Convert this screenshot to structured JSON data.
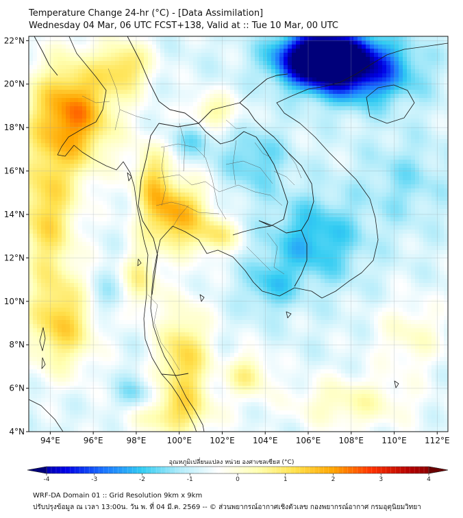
{
  "header": {
    "title_line1": "Temperature Change 24-hr (°C) - [Data Assimilation]",
    "title_line2": "Wednesday 04 Mar, 06 UTC FCST+138, Valid at :: Tue 10 Mar, 00 UTC"
  },
  "map": {
    "lon_range": [
      93,
      112.5
    ],
    "lat_range": [
      4,
      22.2
    ],
    "lat_labels": [
      "22°N",
      "20°N",
      "18°N",
      "16°N",
      "14°N",
      "12°N",
      "10°N",
      "8°N",
      "6°N",
      "4°N"
    ],
    "lat_values": [
      22,
      20,
      18,
      16,
      14,
      12,
      10,
      8,
      6,
      4
    ],
    "lon_labels": [
      "94°E",
      "96°E",
      "98°E",
      "100°E",
      "102°E",
      "104°E",
      "106°E",
      "108°E",
      "110°E",
      "112°E"
    ],
    "lon_values": [
      94,
      96,
      98,
      100,
      102,
      104,
      106,
      108,
      110,
      112
    ]
  },
  "field": {
    "base_value": -0.7,
    "blobs": [
      {
        "lon": 106.6,
        "lat": 21.2,
        "amp": -4.5,
        "sx": 2.0,
        "sy": 1.2
      },
      {
        "lon": 108.5,
        "lat": 20.6,
        "amp": -2.2,
        "sx": 2.5,
        "sy": 1.5
      },
      {
        "lon": 95.0,
        "lat": 18.6,
        "amp": 2.7,
        "sx": 2.0,
        "sy": 2.5
      },
      {
        "lon": 93.8,
        "lat": 14.0,
        "amp": 1.8,
        "sx": 1.4,
        "sy": 3.0
      },
      {
        "lon": 94.5,
        "lat": 9.0,
        "amp": 1.9,
        "sx": 1.6,
        "sy": 2.2
      },
      {
        "lon": 99.8,
        "lat": 14.0,
        "amp": 2.4,
        "sx": 1.5,
        "sy": 1.6
      },
      {
        "lon": 101.8,
        "lat": 13.0,
        "amp": 1.3,
        "sx": 1.0,
        "sy": 0.8
      },
      {
        "lon": 98.7,
        "lat": 15.8,
        "amp": 1.4,
        "sx": 0.8,
        "sy": 1.5
      },
      {
        "lon": 101.5,
        "lat": 18.6,
        "amp": 1.3,
        "sx": 1.2,
        "sy": 0.9
      },
      {
        "lon": 97.5,
        "lat": 20.8,
        "amp": 1.6,
        "sx": 1.2,
        "sy": 1.2
      },
      {
        "lon": 100.2,
        "lat": 7.2,
        "amp": 1.9,
        "sx": 1.2,
        "sy": 2.5
      },
      {
        "lon": 98.2,
        "lat": 11.0,
        "amp": 1.3,
        "sx": 0.8,
        "sy": 1.5
      },
      {
        "lon": 103.2,
        "lat": 6.6,
        "amp": 1.3,
        "sx": 1.0,
        "sy": 1.0
      },
      {
        "lon": 99.5,
        "lat": 4.8,
        "amp": 1.1,
        "sx": 2.2,
        "sy": 1.0
      },
      {
        "lon": 108.0,
        "lat": 5.3,
        "amp": 1.0,
        "sx": 2.8,
        "sy": 1.2
      },
      {
        "lon": 110.8,
        "lat": 8.4,
        "amp": 0.8,
        "sx": 1.6,
        "sy": 1.6
      },
      {
        "lon": 106.3,
        "lat": 12.8,
        "amp": -1.3,
        "sx": 2.2,
        "sy": 2.0
      },
      {
        "lon": 104.2,
        "lat": 10.7,
        "amp": -0.9,
        "sx": 1.2,
        "sy": 1.2
      },
      {
        "lon": 103.5,
        "lat": 16.5,
        "amp": -0.9,
        "sx": 1.5,
        "sy": 1.5
      },
      {
        "lon": 100.8,
        "lat": 17.6,
        "amp": -0.9,
        "sx": 1.0,
        "sy": 0.9
      },
      {
        "lon": 98.0,
        "lat": 5.6,
        "amp": -0.9,
        "sx": 1.0,
        "sy": 0.8
      },
      {
        "lon": 96.5,
        "lat": 10.2,
        "amp": -0.6,
        "sx": 1.0,
        "sy": 1.0
      },
      {
        "lon": 110.5,
        "lat": 15.5,
        "amp": -0.6,
        "sx": 2.0,
        "sy": 2.0
      }
    ]
  },
  "colorbar": {
    "title": "อุณหภูมิเปลี่ยนแปลง หน่วย องศาเซลเซียส (°C)",
    "min": -4,
    "max": 4,
    "ticks": [
      "-4",
      "-3",
      "-2",
      "-1",
      "0",
      "1",
      "2",
      "3",
      "4"
    ],
    "tick_values": [
      -4,
      -3,
      -2,
      -1,
      0,
      1,
      2,
      3,
      4
    ],
    "stops": [
      "#00007a",
      "#0000e6",
      "#1a75ff",
      "#33ccf2",
      "#b3ecfa",
      "#ffffff",
      "#ffffb3",
      "#ffe14d",
      "#ffa500",
      "#ff3300",
      "#b30000",
      "#6b0000"
    ]
  },
  "footer": {
    "line1": "WRF-DA Domain 01 :: Grid Resolution 9km x 9km",
    "line2": "ปรับปรุงข้อมูล ณ เวลา 13:00น. วัน พ. ที่ 04 มี.ค. 2569 -- © ส่วนพยากรณ์อากาศเชิงตัวเลข กองพยากรณ์อากาศ กรมอุตุนิยมวิทยา"
  }
}
